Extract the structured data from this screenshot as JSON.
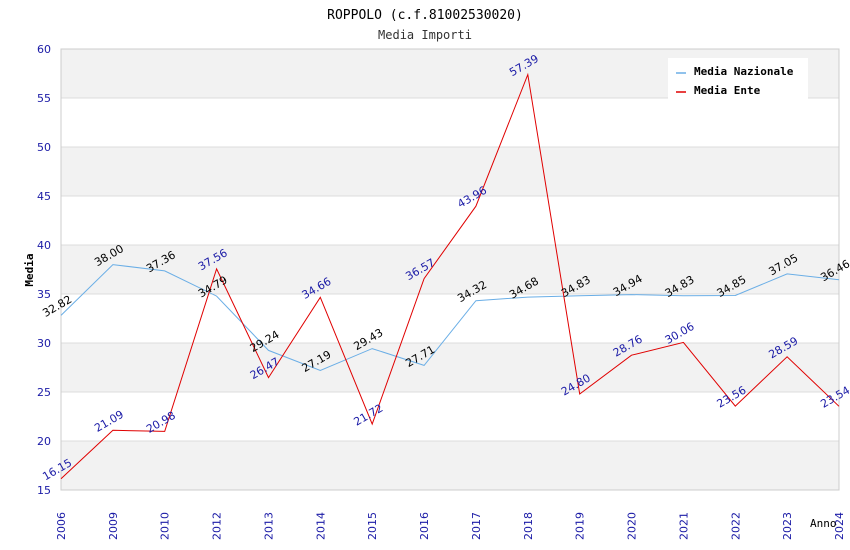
{
  "chart_data": {
    "type": "line",
    "title": "ROPPOLO (c.f.81002530020)",
    "subtitle": "Media Importi",
    "xlabel": "Anno",
    "ylabel": "Media",
    "ylim": [
      15,
      60
    ],
    "yticks": [
      15,
      20,
      25,
      30,
      35,
      40,
      45,
      50,
      55,
      60
    ],
    "categories": [
      "2006",
      "2009",
      "2010",
      "2012",
      "2013",
      "2014",
      "2015",
      "2016",
      "2017",
      "2018",
      "2019",
      "2020",
      "2021",
      "2022",
      "2023",
      "2024"
    ],
    "series": [
      {
        "name": "Media Nazionale",
        "color": "#6aaee6",
        "label_color": "#000000",
        "values": [
          32.82,
          38.0,
          37.36,
          34.79,
          29.24,
          27.19,
          29.43,
          27.71,
          34.32,
          34.68,
          34.83,
          34.94,
          34.83,
          34.85,
          37.05,
          36.46
        ],
        "labels": [
          "32.82",
          "38.00",
          "37.36",
          "34.79",
          "29.24",
          "27.19",
          "29.43",
          "27.71",
          "34.32",
          "34.68",
          "34.83",
          "34.94",
          "34.83",
          "34.85",
          "37.05",
          "36.46"
        ]
      },
      {
        "name": "Media Ente",
        "color": "#e00000",
        "label_color": "#1a1aa6",
        "values": [
          16.15,
          21.09,
          20.98,
          37.56,
          26.47,
          34.66,
          21.72,
          36.57,
          43.96,
          57.39,
          24.8,
          28.76,
          30.06,
          23.56,
          28.59,
          23.54
        ],
        "labels": [
          "16.15",
          "21.09",
          "20.98",
          "37.56",
          "26.47",
          "34.66",
          "21.72",
          "36.57",
          "43.96",
          "57.39",
          "24.80",
          "28.76",
          "30.06",
          "23.56",
          "28.59",
          "23.54"
        ]
      }
    ],
    "legend_position": "top-right",
    "grid": true
  }
}
